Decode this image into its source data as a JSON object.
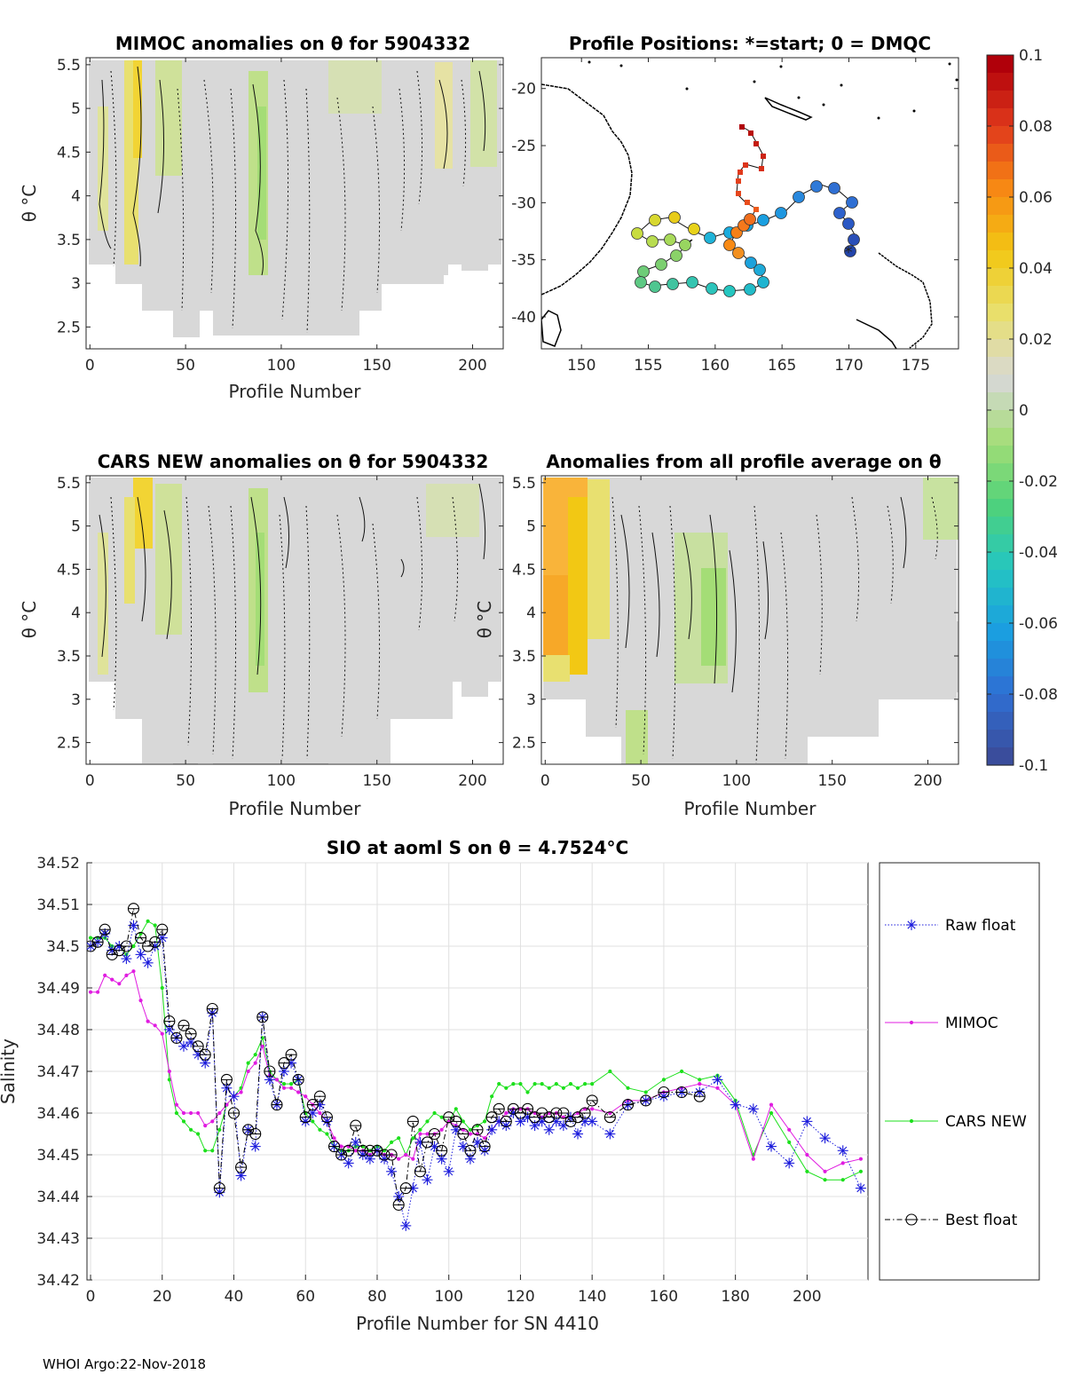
{
  "footer": "WHOI Argo:22-Nov-2018",
  "colorbar": {
    "ticks": [
      "0.1",
      "0.08",
      "0.06",
      "0.04",
      "0.02",
      "0",
      "-0.02",
      "-0.04",
      "-0.06",
      "-0.08",
      "-0.1"
    ],
    "range": [
      -0.1,
      0.1
    ],
    "colors": [
      "#3a4d9c",
      "#2f6fd3",
      "#1a9fe0",
      "#25c6c0",
      "#4fd27a",
      "#a4dd76",
      "#d8d8d8",
      "#e8e070",
      "#f2c814",
      "#f88a14",
      "#e03a1c",
      "#b0000a"
    ]
  },
  "panels": {
    "mimoc": {
      "title": "MIMOC anomalies on θ  for 5904332",
      "ylabel": "θ °C",
      "xlabel": "Profile Number",
      "xticks": [
        "0",
        "50",
        "100",
        "150",
        "200"
      ],
      "yticks": [
        "5.5",
        "5",
        "4.5",
        "4",
        "3.5",
        "3",
        "2.5"
      ]
    },
    "positions": {
      "title": "Profile Positions: *=start; 0 = DMQC",
      "xticks": [
        "150",
        "155",
        "160",
        "165",
        "170",
        "175"
      ],
      "yticks": [
        "-20",
        "-25",
        "-30",
        "-35",
        "-40"
      ]
    },
    "cars": {
      "title": "CARS NEW anomalies on θ for 5904332",
      "ylabel": "θ °C",
      "xlabel": "Profile Number",
      "xticks": [
        "0",
        "50",
        "100",
        "150",
        "200"
      ],
      "yticks": [
        "5.5",
        "5",
        "4.5",
        "4",
        "3.5",
        "3",
        "2.5"
      ]
    },
    "average": {
      "title": "Anomalies from all profile average on θ",
      "ylabel": "θ °C",
      "xlabel": "Profile Number",
      "xticks": [
        "0",
        "50",
        "100",
        "150",
        "200"
      ],
      "yticks": [
        "5.5",
        "5",
        "4.5",
        "4",
        "3.5",
        "3",
        "2.5"
      ]
    }
  },
  "chart_data": {
    "type": "line",
    "title": "SIO at aoml S on θ = 4.7524°C",
    "xlabel": "Profile Number for SN 4410",
    "ylabel": "Salinity",
    "xlim": [
      -1,
      217
    ],
    "ylim": [
      34.42,
      34.52
    ],
    "xticks": [
      "0",
      "20",
      "40",
      "60",
      "80",
      "100",
      "120",
      "140",
      "160",
      "180",
      "200"
    ],
    "yticks": [
      "34.52",
      "34.51",
      "34.5",
      "34.49",
      "34.48",
      "34.47",
      "34.46",
      "34.45",
      "34.44",
      "34.43",
      "34.42"
    ],
    "grid": true,
    "legend_position": "outside-right",
    "series": [
      {
        "name": "Raw float",
        "color": "#1c1cdc",
        "style": "dotted-star",
        "x": [
          0,
          2,
          4,
          6,
          8,
          10,
          12,
          14,
          16,
          18,
          20,
          22,
          24,
          26,
          28,
          30,
          32,
          34,
          36,
          38,
          40,
          42,
          44,
          46,
          48,
          50,
          52,
          54,
          56,
          58,
          60,
          62,
          64,
          66,
          68,
          70,
          72,
          74,
          76,
          78,
          80,
          82,
          84,
          86,
          88,
          90,
          92,
          94,
          96,
          98,
          100,
          102,
          104,
          106,
          108,
          110,
          112,
          114,
          116,
          118,
          120,
          122,
          124,
          126,
          128,
          130,
          132,
          134,
          136,
          138,
          140,
          145,
          150,
          155,
          160,
          165,
          170,
          175,
          180,
          185,
          190,
          195,
          200,
          205,
          210,
          215
        ],
        "y": [
          34.5,
          34.501,
          34.503,
          34.499,
          34.5,
          34.497,
          34.505,
          34.498,
          34.496,
          34.5,
          34.502,
          34.48,
          34.478,
          34.476,
          34.477,
          34.474,
          34.472,
          34.484,
          34.441,
          34.466,
          34.464,
          34.445,
          34.456,
          34.452,
          34.483,
          34.468,
          34.462,
          34.47,
          34.472,
          34.468,
          34.458,
          34.46,
          34.462,
          34.458,
          34.452,
          34.45,
          34.448,
          34.453,
          34.45,
          34.449,
          34.451,
          34.449,
          34.446,
          34.44,
          34.433,
          34.442,
          34.453,
          34.444,
          34.452,
          34.449,
          34.446,
          34.456,
          34.452,
          34.449,
          34.453,
          34.451,
          34.456,
          34.458,
          34.457,
          34.46,
          34.458,
          34.459,
          34.457,
          34.458,
          34.456,
          34.458,
          34.457,
          34.459,
          34.455,
          34.458,
          34.458,
          34.455,
          34.462,
          34.463,
          34.464,
          34.465,
          34.465,
          34.468,
          34.462,
          34.461,
          34.452,
          34.448,
          34.458,
          34.454,
          34.451,
          34.442
        ]
      },
      {
        "name": "MIMOC",
        "color": "#e01ce0",
        "style": "solid-dot",
        "x": [
          0,
          2,
          4,
          6,
          8,
          10,
          12,
          14,
          16,
          18,
          20,
          22,
          24,
          26,
          28,
          30,
          32,
          34,
          36,
          38,
          40,
          42,
          44,
          46,
          48,
          50,
          52,
          54,
          56,
          58,
          60,
          62,
          64,
          66,
          68,
          70,
          72,
          74,
          76,
          78,
          80,
          82,
          84,
          86,
          88,
          90,
          92,
          94,
          96,
          98,
          100,
          102,
          104,
          106,
          108,
          110,
          112,
          114,
          116,
          118,
          120,
          122,
          124,
          126,
          128,
          130,
          132,
          134,
          136,
          138,
          140,
          145,
          150,
          155,
          160,
          165,
          170,
          175,
          180,
          185,
          190,
          195,
          200,
          205,
          210,
          215
        ],
        "y": [
          34.489,
          34.489,
          34.493,
          34.492,
          34.491,
          34.493,
          34.494,
          34.487,
          34.482,
          34.481,
          34.479,
          34.47,
          34.462,
          34.46,
          34.46,
          34.46,
          34.457,
          34.458,
          34.46,
          34.462,
          34.464,
          34.465,
          34.47,
          34.472,
          34.476,
          34.469,
          34.468,
          34.466,
          34.466,
          34.465,
          34.464,
          34.462,
          34.46,
          34.458,
          34.454,
          34.452,
          34.452,
          34.451,
          34.451,
          34.45,
          34.451,
          34.45,
          34.45,
          34.449,
          34.45,
          34.449,
          34.455,
          34.455,
          34.455,
          34.456,
          34.458,
          34.457,
          34.456,
          34.455,
          34.455,
          34.454,
          34.456,
          34.458,
          34.46,
          34.461,
          34.461,
          34.461,
          34.46,
          34.459,
          34.46,
          34.46,
          34.459,
          34.459,
          34.46,
          34.461,
          34.461,
          34.46,
          34.463,
          34.463,
          34.465,
          34.466,
          34.467,
          34.466,
          34.462,
          34.449,
          34.462,
          34.456,
          34.45,
          34.446,
          34.448,
          34.449
        ]
      },
      {
        "name": "CARS NEW",
        "color": "#1ce01c",
        "style": "solid-dot",
        "x": [
          0,
          2,
          4,
          6,
          8,
          10,
          12,
          14,
          16,
          18,
          20,
          22,
          24,
          26,
          28,
          30,
          32,
          34,
          36,
          38,
          40,
          42,
          44,
          46,
          48,
          50,
          52,
          54,
          56,
          58,
          60,
          62,
          64,
          66,
          68,
          70,
          72,
          74,
          76,
          78,
          80,
          82,
          84,
          86,
          88,
          90,
          92,
          94,
          96,
          98,
          100,
          102,
          104,
          106,
          108,
          110,
          112,
          114,
          116,
          118,
          120,
          122,
          124,
          126,
          128,
          130,
          132,
          134,
          136,
          138,
          140,
          145,
          150,
          155,
          160,
          165,
          170,
          175,
          180,
          185,
          190,
          195,
          200,
          205,
          210,
          215
        ],
        "y": [
          34.502,
          34.502,
          34.502,
          34.5,
          34.5,
          34.498,
          34.5,
          34.503,
          34.506,
          34.505,
          34.49,
          34.468,
          34.46,
          34.458,
          34.456,
          34.455,
          34.451,
          34.451,
          34.456,
          34.462,
          34.464,
          34.466,
          34.472,
          34.474,
          34.478,
          34.47,
          34.468,
          34.467,
          34.467,
          34.468,
          34.46,
          34.458,
          34.456,
          34.455,
          34.452,
          34.451,
          34.451,
          34.452,
          34.452,
          34.451,
          34.452,
          34.451,
          34.453,
          34.454,
          34.45,
          34.454,
          34.456,
          34.458,
          34.46,
          34.459,
          34.458,
          34.461,
          34.458,
          34.456,
          34.457,
          34.458,
          34.464,
          34.467,
          34.466,
          34.467,
          34.467,
          34.465,
          34.467,
          34.467,
          34.466,
          34.467,
          34.466,
          34.467,
          34.466,
          34.467,
          34.467,
          34.47,
          34.466,
          34.465,
          34.468,
          34.47,
          34.468,
          34.469,
          34.463,
          34.45,
          34.46,
          34.453,
          34.446,
          34.444,
          34.444,
          34.446
        ]
      },
      {
        "name": "Best float",
        "color": "#000000",
        "style": "dashdot-circle",
        "x": [
          0,
          2,
          4,
          6,
          8,
          10,
          12,
          14,
          16,
          18,
          20,
          22,
          24,
          26,
          28,
          30,
          32,
          34,
          36,
          38,
          40,
          42,
          44,
          46,
          48,
          50,
          52,
          54,
          56,
          58,
          60,
          62,
          64,
          66,
          68,
          70,
          72,
          74,
          76,
          78,
          80,
          82,
          84,
          86,
          88,
          90,
          92,
          94,
          96,
          98,
          100,
          102,
          104,
          106,
          108,
          110,
          112,
          114,
          116,
          118,
          120,
          122,
          124,
          126,
          128,
          130,
          132,
          134,
          136,
          138,
          140,
          145,
          150,
          155,
          160,
          165,
          170
        ],
        "y": [
          34.5,
          34.501,
          34.504,
          34.498,
          34.499,
          34.5,
          34.509,
          34.502,
          34.5,
          34.501,
          34.504,
          34.482,
          34.478,
          34.481,
          34.479,
          34.476,
          34.474,
          34.485,
          34.442,
          34.468,
          34.46,
          34.447,
          34.456,
          34.455,
          34.483,
          34.47,
          34.462,
          34.472,
          34.474,
          34.468,
          34.459,
          34.462,
          34.464,
          34.459,
          34.452,
          34.45,
          34.451,
          34.457,
          34.451,
          34.451,
          34.451,
          34.45,
          34.45,
          34.438,
          34.442,
          34.458,
          34.446,
          34.453,
          34.455,
          34.451,
          34.459,
          34.458,
          34.455,
          34.451,
          34.456,
          34.452,
          34.459,
          34.461,
          34.458,
          34.461,
          34.46,
          34.461,
          34.459,
          34.46,
          34.459,
          34.46,
          34.46,
          34.458,
          34.459,
          34.46,
          34.463,
          34.459,
          34.462,
          34.463,
          34.465,
          34.465,
          34.464
        ]
      }
    ]
  }
}
